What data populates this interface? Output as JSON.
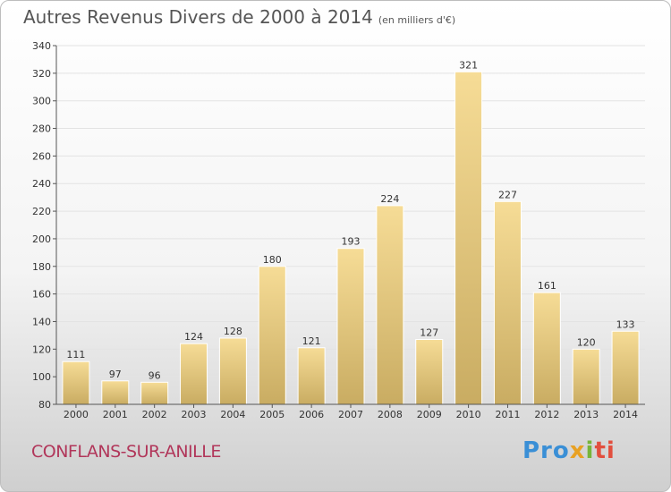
{
  "header": {
    "title": "Autres Revenus Divers de 2000 à 2014",
    "subtitle": "(en milliers d'€)"
  },
  "footer": {
    "place": "CONFLANS-SUR-ANILLE",
    "logo": [
      "Pro",
      "x",
      "i",
      "ti"
    ]
  },
  "colors": {
    "bar_top": "#f6dc96",
    "bar_bottom": "#c9ac62",
    "grid": "#e3e3e3",
    "axis": "#555555",
    "place": "#b1365a"
  },
  "chart_data": {
    "type": "bar",
    "title": "Autres Revenus Divers de 2000 à 2014",
    "subtitle": "(en milliers d'€)",
    "categories": [
      "2000",
      "2001",
      "2002",
      "2003",
      "2004",
      "2005",
      "2006",
      "2007",
      "2008",
      "2009",
      "2010",
      "2011",
      "2012",
      "2013",
      "2014"
    ],
    "values": [
      111,
      97,
      96,
      124,
      128,
      180,
      121,
      193,
      224,
      127,
      321,
      227,
      161,
      120,
      133
    ],
    "ylim": [
      80,
      340
    ],
    "yticks": [
      80,
      100,
      120,
      140,
      160,
      180,
      200,
      220,
      240,
      260,
      280,
      300,
      320,
      340
    ],
    "grid": true,
    "legend": "none"
  }
}
